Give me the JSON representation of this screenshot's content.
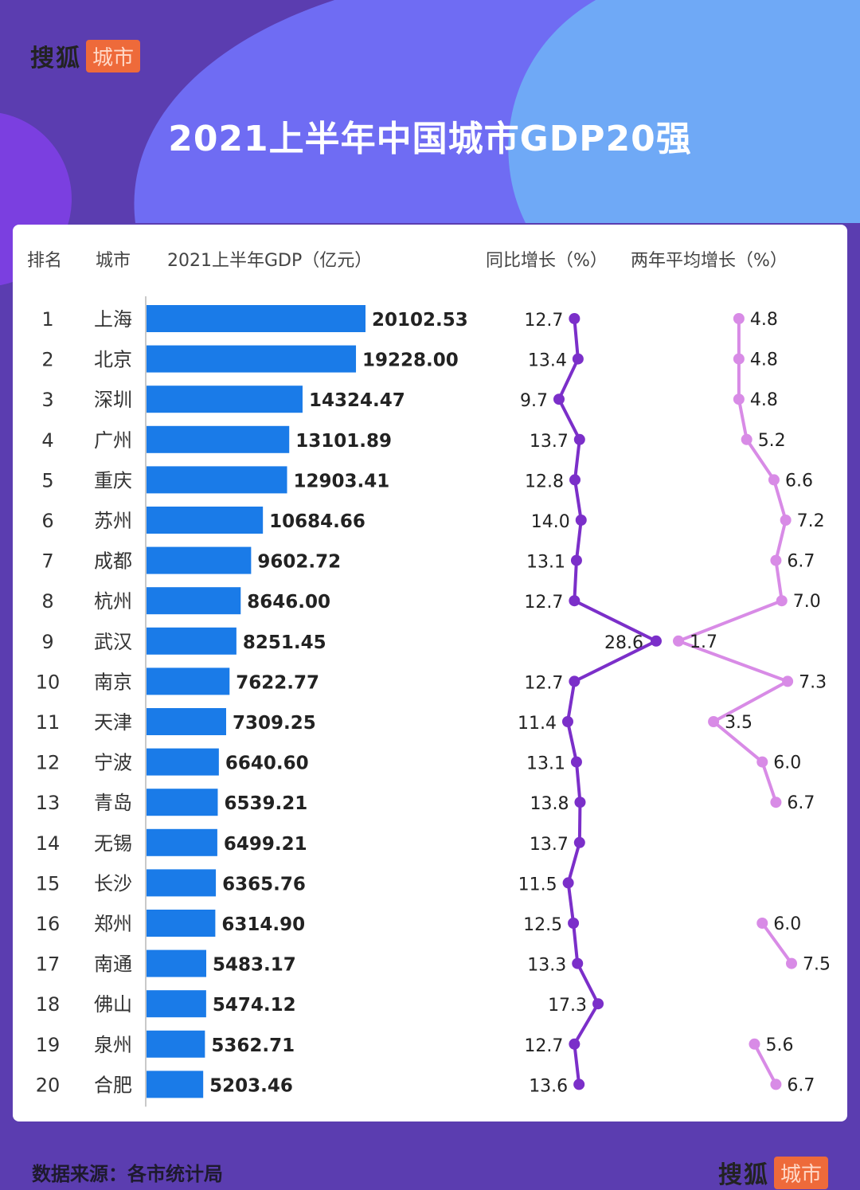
{
  "brand": {
    "sohu": "搜狐",
    "city": "城市"
  },
  "title": "2021上半年中国城市GDP20强",
  "source": "数据来源：各市统计局",
  "colors": {
    "bar": "#1a7be8",
    "yoy": "#7b2fc9",
    "avg": "#d88be6",
    "bg_dark": "#5b3db0",
    "bg_blob": "#6f6cf3",
    "bg_light": "#6fa9f6"
  },
  "chart_data": {
    "type": "table",
    "headers": {
      "rank": "排名",
      "city": "城市",
      "gdp": "2021上半年GDP（亿元）",
      "yoy": "同比增长（%）",
      "avg": "两年平均增长（%）"
    },
    "rows": [
      {
        "rank": "1",
        "city": "上海",
        "gdp": 20102.53,
        "gdp_label": "20102.53",
        "yoy": 12.7,
        "yoy_label": "12.7",
        "avg": 4.8,
        "avg_label": "4.8"
      },
      {
        "rank": "2",
        "city": "北京",
        "gdp": 19228.0,
        "gdp_label": "19228.00",
        "yoy": 13.4,
        "yoy_label": "13.4",
        "avg": 4.8,
        "avg_label": "4.8"
      },
      {
        "rank": "3",
        "city": "深圳",
        "gdp": 14324.47,
        "gdp_label": "14324.47",
        "yoy": 9.7,
        "yoy_label": "9.7",
        "avg": 4.8,
        "avg_label": "4.8"
      },
      {
        "rank": "4",
        "city": "广州",
        "gdp": 13101.89,
        "gdp_label": "13101.89",
        "yoy": 13.7,
        "yoy_label": "13.7",
        "avg": 5.2,
        "avg_label": "5.2"
      },
      {
        "rank": "5",
        "city": "重庆",
        "gdp": 12903.41,
        "gdp_label": "12903.41",
        "yoy": 12.8,
        "yoy_label": "12.8",
        "avg": 6.6,
        "avg_label": "6.6"
      },
      {
        "rank": "6",
        "city": "苏州",
        "gdp": 10684.66,
        "gdp_label": "10684.66",
        "yoy": 14.0,
        "yoy_label": "14.0",
        "avg": 7.2,
        "avg_label": "7.2"
      },
      {
        "rank": "7",
        "city": "成都",
        "gdp": 9602.72,
        "gdp_label": "9602.72",
        "yoy": 13.1,
        "yoy_label": "13.1",
        "avg": 6.7,
        "avg_label": "6.7"
      },
      {
        "rank": "8",
        "city": "杭州",
        "gdp": 8646.0,
        "gdp_label": "8646.00",
        "yoy": 12.7,
        "yoy_label": "12.7",
        "avg": 7.0,
        "avg_label": "7.0"
      },
      {
        "rank": "9",
        "city": "武汉",
        "gdp": 8251.45,
        "gdp_label": "8251.45",
        "yoy": 28.6,
        "yoy_label": "28.6",
        "avg": 1.7,
        "avg_label": "1.7"
      },
      {
        "rank": "10",
        "city": "南京",
        "gdp": 7622.77,
        "gdp_label": "7622.77",
        "yoy": 12.7,
        "yoy_label": "12.7",
        "avg": 7.3,
        "avg_label": "7.3"
      },
      {
        "rank": "11",
        "city": "天津",
        "gdp": 7309.25,
        "gdp_label": "7309.25",
        "yoy": 11.4,
        "yoy_label": "11.4",
        "avg": 3.5,
        "avg_label": "3.5"
      },
      {
        "rank": "12",
        "city": "宁波",
        "gdp": 6640.6,
        "gdp_label": "6640.60",
        "yoy": 13.1,
        "yoy_label": "13.1",
        "avg": 6.0,
        "avg_label": "6.0"
      },
      {
        "rank": "13",
        "city": "青岛",
        "gdp": 6539.21,
        "gdp_label": "6539.21",
        "yoy": 13.8,
        "yoy_label": "13.8",
        "avg": 6.7,
        "avg_label": "6.7"
      },
      {
        "rank": "14",
        "city": "无锡",
        "gdp": 6499.21,
        "gdp_label": "6499.21",
        "yoy": 13.7,
        "yoy_label": "13.7",
        "avg": null,
        "avg_label": ""
      },
      {
        "rank": "15",
        "city": "长沙",
        "gdp": 6365.76,
        "gdp_label": "6365.76",
        "yoy": 11.5,
        "yoy_label": "11.5",
        "avg": null,
        "avg_label": ""
      },
      {
        "rank": "16",
        "city": "郑州",
        "gdp": 6314.9,
        "gdp_label": "6314.90",
        "yoy": 12.5,
        "yoy_label": "12.5",
        "avg": 6.0,
        "avg_label": "6.0"
      },
      {
        "rank": "17",
        "city": "南通",
        "gdp": 5483.17,
        "gdp_label": "5483.17",
        "yoy": 13.3,
        "yoy_label": "13.3",
        "avg": 7.5,
        "avg_label": "7.5"
      },
      {
        "rank": "18",
        "city": "佛山",
        "gdp": 5474.12,
        "gdp_label": "5474.12",
        "yoy": 17.3,
        "yoy_label": "17.3",
        "avg": null,
        "avg_label": ""
      },
      {
        "rank": "19",
        "city": "泉州",
        "gdp": 5362.71,
        "gdp_label": "5362.71",
        "yoy": 12.7,
        "yoy_label": "12.7",
        "avg": 5.6,
        "avg_label": "5.6"
      },
      {
        "rank": "20",
        "city": "合肥",
        "gdp": 5203.46,
        "gdp_label": "5203.46",
        "yoy": 13.6,
        "yoy_label": "13.6",
        "avg": 6.7,
        "avg_label": "6.7"
      }
    ],
    "gdp_range": [
      0,
      20102.53
    ]
  }
}
